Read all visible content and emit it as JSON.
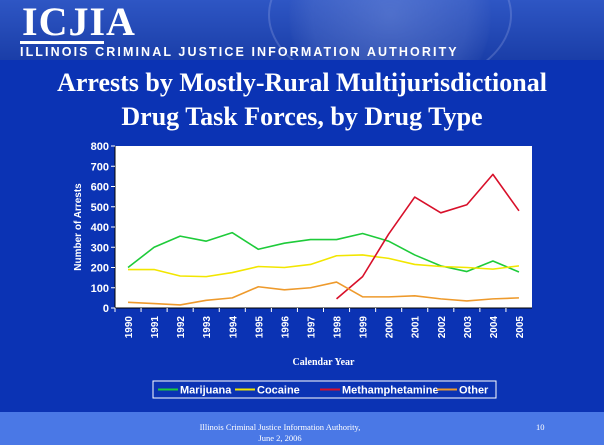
{
  "header": {
    "logo": "ICJIA",
    "agency_name": "ILLINOIS CRIMINAL JUSTICE INFORMATION AUTHORITY"
  },
  "slide": {
    "title_line1": "Arrests by Mostly-Rural Multijurisdictional",
    "title_line2": "Drug Task Forces, by Drug Type"
  },
  "footer": {
    "line1": "Illinois Criminal Justice Information Authority,",
    "line2": "June 2, 2006",
    "page": "10"
  },
  "colors": {
    "background": "#0b33b4",
    "plot_background": "#ffffff",
    "marijuana": "#1ecb3a",
    "cocaine": "#f2e600",
    "methamphetamine": "#d8102a",
    "other": "#ee9a2c"
  },
  "chart_data": {
    "type": "line",
    "x": [
      "1990",
      "1991",
      "1992",
      "1993",
      "1994",
      "1995",
      "1996",
      "1997",
      "1998",
      "1999",
      "2000",
      "2001",
      "2002",
      "2003",
      "2004",
      "2005"
    ],
    "xlabel": "Calendar Year",
    "ylabel": "Number of Arrests",
    "ylim": [
      0,
      800
    ],
    "yticks": [
      "0",
      "100",
      "200",
      "300",
      "400",
      "500",
      "600",
      "700",
      "800"
    ],
    "grid": false,
    "legend_position": "bottom",
    "series": [
      {
        "name": "Marijuana",
        "color": "#1ecb3a",
        "values": [
          200,
          300,
          355,
          330,
          372,
          290,
          320,
          338,
          338,
          368,
          330,
          262,
          208,
          180,
          232,
          178
        ]
      },
      {
        "name": "Cocaine",
        "color": "#f2e600",
        "values": [
          190,
          190,
          158,
          155,
          175,
          205,
          200,
          215,
          258,
          262,
          245,
          215,
          205,
          200,
          192,
          208
        ]
      },
      {
        "name": "Methamphetamine",
        "color": "#d8102a",
        "values": [
          null,
          null,
          null,
          null,
          null,
          null,
          null,
          null,
          45,
          155,
          365,
          548,
          470,
          510,
          660,
          480
        ]
      },
      {
        "name": "Other",
        "color": "#ee9a2c",
        "values": [
          28,
          22,
          15,
          38,
          50,
          105,
          90,
          100,
          128,
          55,
          55,
          60,
          45,
          35,
          45,
          50
        ]
      }
    ]
  }
}
